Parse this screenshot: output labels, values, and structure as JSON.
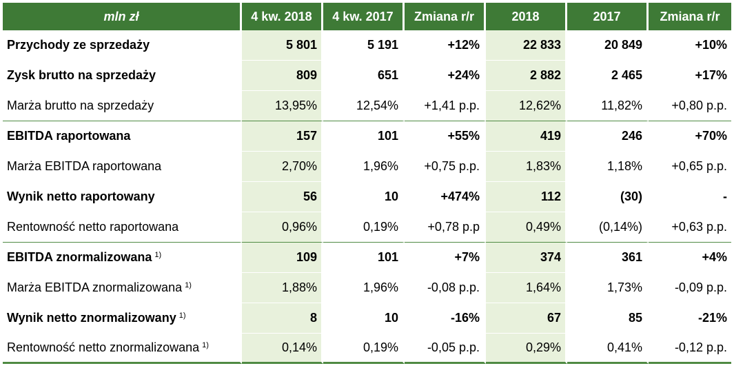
{
  "header": {
    "label": "mln zł",
    "columns": [
      "4 kw. 2018",
      "4 kw. 2017",
      "Zmiana r/r",
      "2018",
      "2017",
      "Zmiana r/r"
    ]
  },
  "rows": [
    {
      "label": "Przychody ze sprzedaży",
      "note": "",
      "bold": true,
      "values": [
        "5 801",
        "5 191",
        "+12%",
        "22 833",
        "20 849",
        "+10%"
      ]
    },
    {
      "label": "Zysk brutto na sprzedaży",
      "note": "",
      "bold": true,
      "values": [
        "809",
        "651",
        "+24%",
        "2 882",
        "2 465",
        "+17%"
      ]
    },
    {
      "label": "Marża brutto na sprzedaży",
      "note": "",
      "bold": false,
      "values": [
        "13,95%",
        "12,54%",
        "+1,41 p.p.",
        "12,62%",
        "11,82%",
        "+0,80 p.p."
      ]
    },
    {
      "label": "EBITDA raportowana",
      "note": "",
      "bold": true,
      "values": [
        "157",
        "101",
        "+55%",
        "419",
        "246",
        "+70%"
      ]
    },
    {
      "label": "Marża EBITDA raportowana",
      "note": "",
      "bold": false,
      "values": [
        "2,70%",
        "1,96%",
        "+0,75 p.p.",
        "1,83%",
        "1,18%",
        "+0,65 p.p."
      ]
    },
    {
      "label": "Wynik netto raportowany",
      "note": "",
      "bold": true,
      "values": [
        "56",
        "10",
        "+474%",
        "112",
        "(30)",
        "-"
      ]
    },
    {
      "label": "Rentowność netto raportowana",
      "note": "",
      "bold": false,
      "values": [
        "0,96%",
        "0,19%",
        "+0,78 p.p",
        "0,49%",
        "(0,14%)",
        "+0,63 p.p."
      ]
    },
    {
      "label": "EBITDA znormalizowana",
      "note": "1)",
      "bold": true,
      "values": [
        "109",
        "101",
        "+7%",
        "374",
        "361",
        "+4%"
      ]
    },
    {
      "label": "Marża EBITDA znormalizowana",
      "note": "1)",
      "bold": false,
      "values": [
        "1,88%",
        "1,96%",
        "-0,08 p.p.",
        "1,64%",
        "1,73%",
        "-0,09 p.p."
      ]
    },
    {
      "label": "Wynik netto znormalizowany",
      "note": "1)",
      "bold": true,
      "values": [
        "8",
        "10",
        "-16%",
        "67",
        "85",
        "-21%"
      ]
    },
    {
      "label": "Rentowność netto znormalizowana",
      "note": "1)",
      "bold": false,
      "values": [
        "0,14%",
        "0,19%",
        "-0,05 p.p.",
        "0,29%",
        "0,41%",
        "-0,12 p.p."
      ]
    }
  ],
  "colors": {
    "header_bg": "#3e7a36",
    "highlight_bg": "#e8f1dc",
    "rule": "#4f8a43"
  }
}
